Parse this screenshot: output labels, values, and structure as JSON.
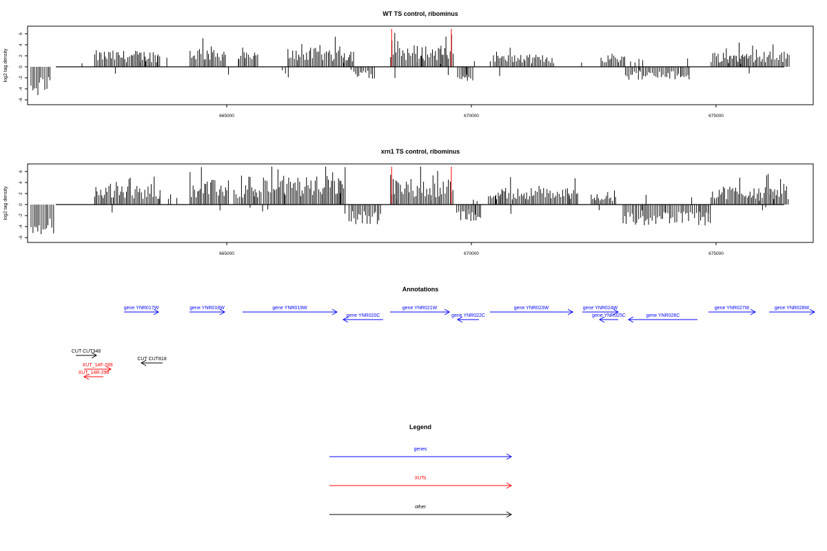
{
  "chart_data": [
    {
      "type": "bar",
      "title": "WT TS control, ribominus",
      "ylabel": "log2 tag density",
      "xlabel": "",
      "ylim": [
        -7,
        7
      ],
      "xlim": [
        660500,
        677000
      ],
      "yticks": [
        "-6",
        "-4",
        "-2",
        "0",
        "2",
        "4",
        "6"
      ],
      "xticks": [
        "665000",
        "670000",
        "675000"
      ],
      "red_markers": [
        668370,
        669590
      ],
      "positive_blocks": [
        {
          "from": 662300,
          "to": 663650,
          "level": 2.4
        },
        {
          "from": 664250,
          "to": 665000,
          "level": 3.0
        },
        {
          "from": 665250,
          "to": 665650,
          "level": 2.2
        },
        {
          "from": 666250,
          "to": 667600,
          "level": 2.8
        },
        {
          "from": 668350,
          "to": 669650,
          "level": 3.2
        },
        {
          "from": 670450,
          "to": 671650,
          "level": 1.8
        },
        {
          "from": 672650,
          "to": 673150,
          "level": 2.0
        },
        {
          "from": 674900,
          "to": 676500,
          "level": 2.3
        }
      ],
      "negative_blocks": [
        {
          "from": 661000,
          "to": 661400,
          "level": -4.5
        },
        {
          "from": 667600,
          "to": 668050,
          "level": -1.8
        },
        {
          "from": 669720,
          "to": 670050,
          "level": -2.2
        },
        {
          "from": 673150,
          "to": 674450,
          "level": -2.0
        }
      ]
    },
    {
      "type": "bar",
      "title": "xrn1 TS control, ribominus",
      "ylabel": "log2 tag density",
      "xlabel": "",
      "ylim": [
        -7,
        7
      ],
      "xlim": [
        660500,
        677000
      ],
      "yticks": [
        "-6",
        "-4",
        "-2",
        "0",
        "2",
        "4",
        "6"
      ],
      "xticks": [
        "665000",
        "670000",
        "675000"
      ],
      "red_markers": [
        668370,
        669590
      ],
      "positive_blocks": [
        {
          "from": 662300,
          "to": 663650,
          "level": 2.8
        },
        {
          "from": 664250,
          "to": 665050,
          "level": 3.6
        },
        {
          "from": 665150,
          "to": 665700,
          "level": 2.8
        },
        {
          "from": 665750,
          "to": 667450,
          "level": 4.2
        },
        {
          "from": 668350,
          "to": 669650,
          "level": 3.8
        },
        {
          "from": 670350,
          "to": 672150,
          "level": 2.5
        },
        {
          "from": 672450,
          "to": 672950,
          "level": 1.8
        },
        {
          "from": 674900,
          "to": 676500,
          "level": 2.8
        }
      ],
      "negative_blocks": [
        {
          "from": 661000,
          "to": 661500,
          "level": -4.5
        },
        {
          "from": 667500,
          "to": 668150,
          "level": -3.0
        },
        {
          "from": 669700,
          "to": 670200,
          "level": -2.5
        },
        {
          "from": 673100,
          "to": 674900,
          "level": -3.2
        }
      ]
    }
  ],
  "annotations": {
    "title": "Annotations",
    "features": [
      {
        "label": "gene YNR017W",
        "kind": "gene",
        "strand": "+",
        "row": 0
      },
      {
        "label": "gene YNR018W",
        "kind": "gene",
        "strand": "+",
        "row": 0
      },
      {
        "label": "gene YNR019W",
        "kind": "gene",
        "strand": "+",
        "row": 0
      },
      {
        "label": "gene YNR020C",
        "kind": "gene",
        "strand": "-",
        "row": 1
      },
      {
        "label": "gene YNR021W",
        "kind": "gene",
        "strand": "+",
        "row": 0
      },
      {
        "label": "gene YNR022C",
        "kind": "gene",
        "strand": "-",
        "row": 1
      },
      {
        "label": "gene YNR023W",
        "kind": "gene",
        "strand": "+",
        "row": 0
      },
      {
        "label": "gene YNR024W",
        "kind": "gene",
        "strand": "+",
        "row": 0
      },
      {
        "label": "gene YNR025C",
        "kind": "gene",
        "strand": "-",
        "row": 1
      },
      {
        "label": "gene YNR026C",
        "kind": "gene",
        "strand": "-",
        "row": 1
      },
      {
        "label": "gene YNR027W",
        "kind": "gene",
        "strand": "+",
        "row": 0
      },
      {
        "label": "gene YNR028W",
        "kind": "gene",
        "strand": "+",
        "row": 0
      },
      {
        "label": "CUT CUT348",
        "kind": "other",
        "strand": "+",
        "row": 2
      },
      {
        "label": "CUT CUT818",
        "kind": "other",
        "strand": "-",
        "row": 3
      },
      {
        "label": "XUT_14F-289",
        "kind": "xut",
        "strand": "+",
        "row": 4
      },
      {
        "label": "XUT_14R-293",
        "kind": "xut",
        "strand": "-",
        "row": 5
      }
    ]
  },
  "legend": {
    "title": "Legend",
    "items": [
      {
        "label": "genes",
        "color": "#0000ff"
      },
      {
        "label": "XUTs",
        "color": "#ff0000"
      },
      {
        "label": "other",
        "color": "#000000"
      }
    ]
  },
  "colors": {
    "gene": "#0000ff",
    "xut": "#ff0000",
    "other": "#000000",
    "signal": "#000000",
    "marker": "#ff0000"
  }
}
